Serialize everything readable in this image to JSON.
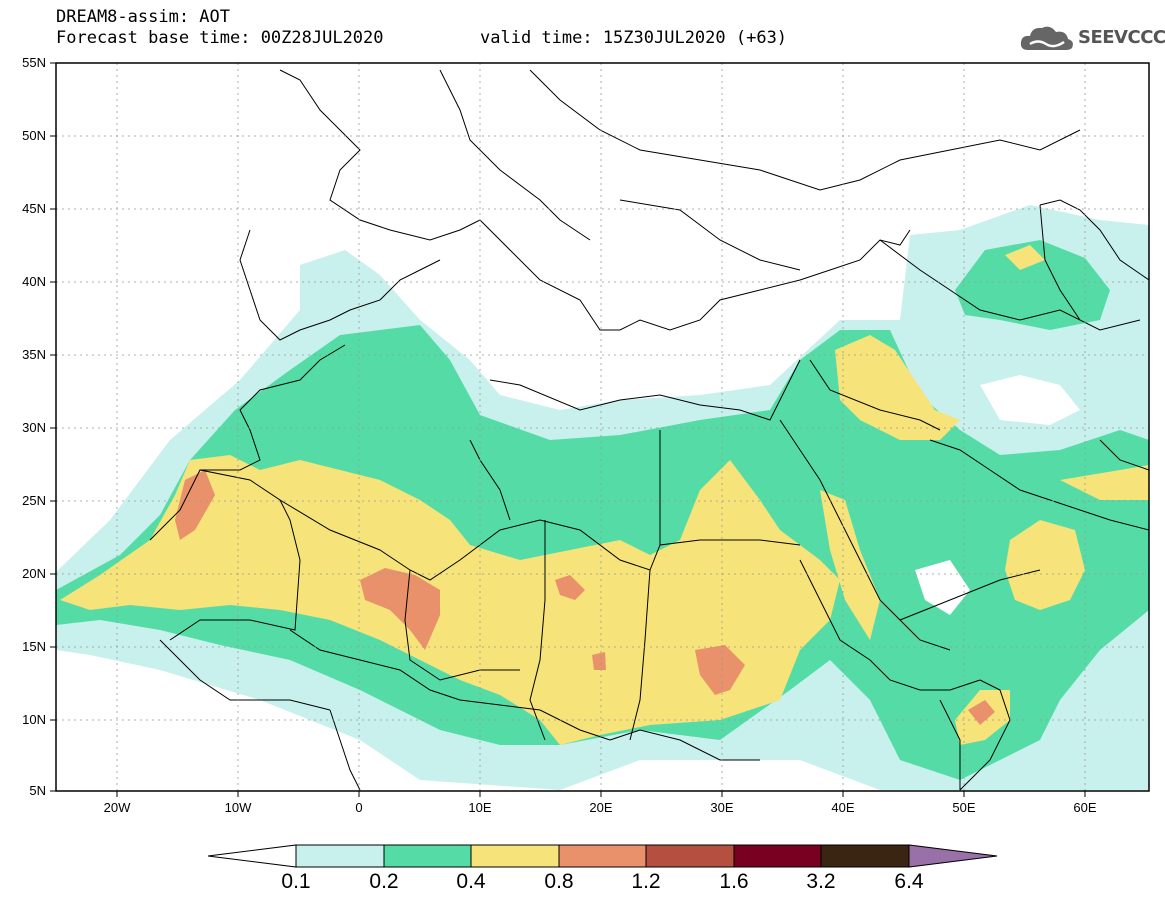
{
  "header": {
    "line1": "DREAM8-assim: AOT",
    "line2": "Forecast base time: 00Z28JUL2020",
    "valid": "valid time: 15Z30JUL2020 (+63)"
  },
  "logo": {
    "text": "SEEVCCC",
    "icon": "cloud-icon"
  },
  "axes": {
    "lat_labels": [
      "55N",
      "50N",
      "45N",
      "40N",
      "35N",
      "30N",
      "25N",
      "20N",
      "15N",
      "10N",
      "5N"
    ],
    "lon_labels": [
      "20W",
      "10W",
      "0",
      "10E",
      "20E",
      "30E",
      "40E",
      "50E",
      "60E"
    ]
  },
  "colorbar": {
    "labels": [
      "0.1",
      "0.2",
      "0.4",
      "0.8",
      "1.2",
      "1.6",
      "3.2",
      "6.4"
    ],
    "colors": [
      "#c8f0ec",
      "#55dca6",
      "#f6e37a",
      "#e9916a",
      "#b55040",
      "#7a0022",
      "#3a2512",
      "#9970a8"
    ]
  },
  "map_colors": {
    "light": "#c8f0ec",
    "green": "#55dca6",
    "yellow": "#f6e37a",
    "orange": "#e9916a"
  }
}
